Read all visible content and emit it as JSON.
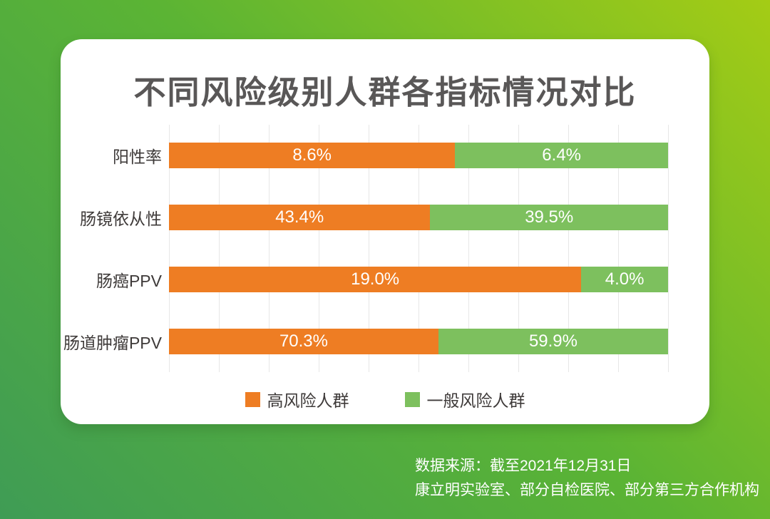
{
  "card": {
    "title": "不同风险级别人群各指标情况对比"
  },
  "chart_data": {
    "type": "bar",
    "subtype": "horizontal-100-percent-stacked",
    "title": "不同风险级别人群各指标情况对比",
    "categories": [
      "阳性率",
      "肠镜依从性",
      "肠癌PPV",
      "肠道肿瘤PPV"
    ],
    "series": [
      {
        "name": "高风险人群",
        "color": "#ee7d23",
        "values": [
          8.6,
          43.4,
          19.0,
          70.3
        ]
      },
      {
        "name": "一般风险人群",
        "color": "#7dc05e",
        "values": [
          6.4,
          39.5,
          4.0,
          59.9
        ]
      }
    ],
    "value_suffix": "%",
    "grid": {
      "vertical_lines": 11,
      "color": "#e7e7e7"
    },
    "legend_position": "bottom",
    "bar_label_color": "#ffffff"
  },
  "footer": {
    "source_line1": "数据来源：截至2021年12月31日",
    "source_line2": "康立明实验室、部分自检医院、部分第三方合作机构"
  },
  "colors": {
    "background_gradient": [
      "#a4cc15",
      "#5bb434",
      "#3f9c55"
    ],
    "card_background": "#ffffff",
    "title_text": "#595757",
    "category_text": "#3e3a39",
    "high_risk_bar": "#ee7d23",
    "general_risk_bar": "#7dc05e"
  }
}
